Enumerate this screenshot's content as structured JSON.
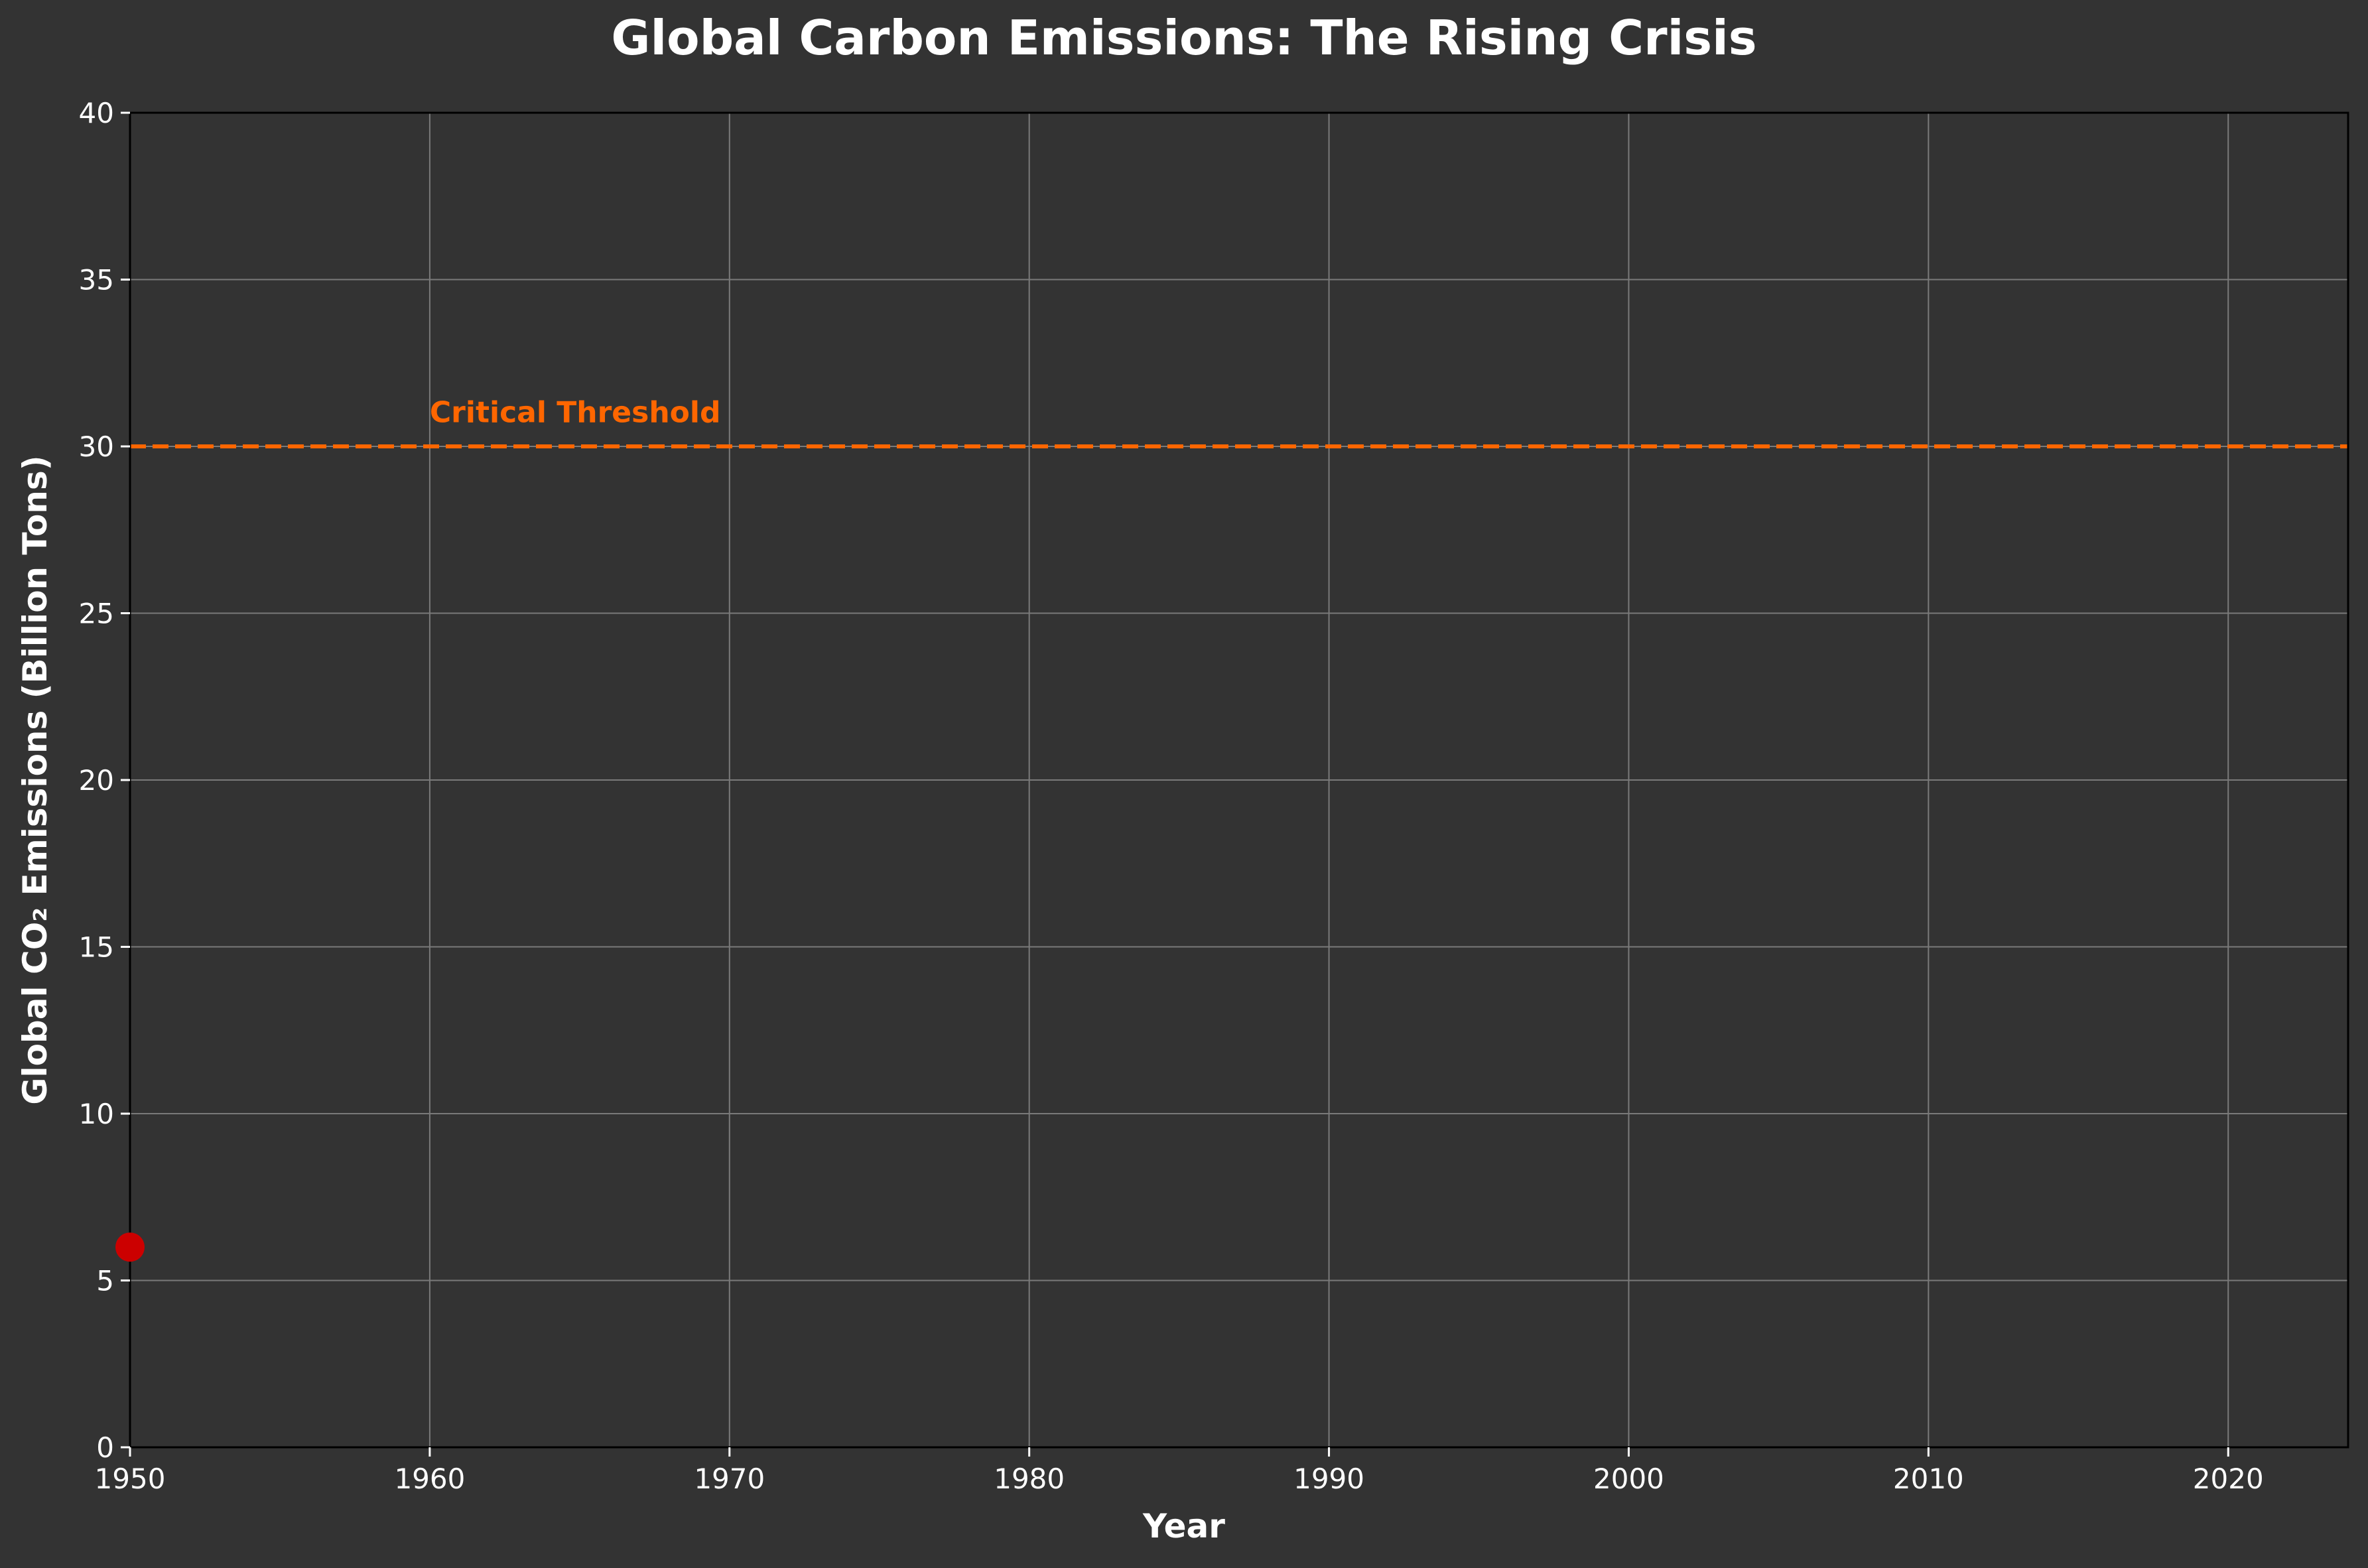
{
  "chart_data": {
    "type": "scatter",
    "title": "Global Carbon Emissions: The Rising Crisis",
    "xlabel": "Year",
    "ylabel": "Global CO₂ Emissions (Billion Tons)",
    "xlim": [
      1950,
      2024
    ],
    "ylim": [
      0,
      40
    ],
    "xticks": [
      1950,
      1960,
      1970,
      1980,
      1990,
      2000,
      2010,
      2020
    ],
    "yticks": [
      0,
      5,
      10,
      15,
      20,
      25,
      30,
      35,
      40
    ],
    "grid": true,
    "series": [
      {
        "x": [
          1950
        ],
        "y": [
          6.0
        ],
        "color": "#cc0000"
      }
    ],
    "threshold": {
      "y": 30,
      "label": "Critical Threshold",
      "label_x": 1960,
      "label_y": 31,
      "color": "#ff6600",
      "style": "dashed"
    }
  },
  "colors": {
    "background": "#333333",
    "grid": "#7a7a7a",
    "text": "#ffffff",
    "threshold": "#ff6600",
    "point": "#cc0000"
  }
}
